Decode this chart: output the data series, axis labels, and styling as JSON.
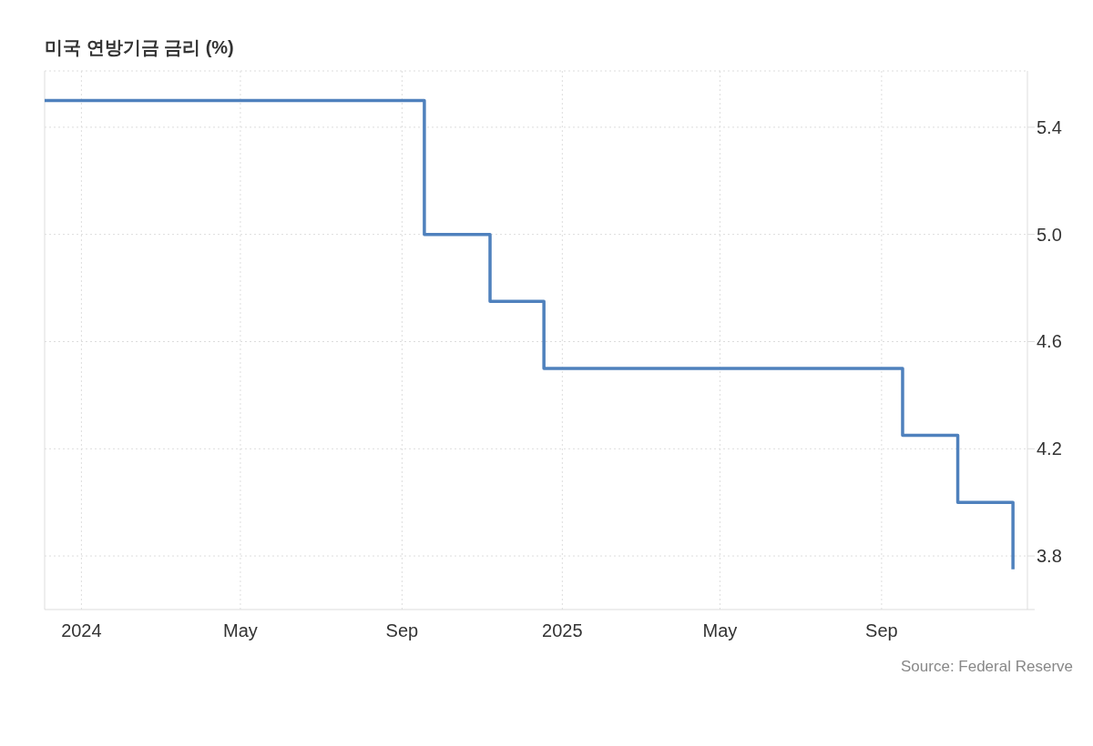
{
  "chart_data": {
    "type": "step",
    "title": "미국 연방기금 금리 (%)",
    "x": [
      "2023-12-04",
      "2024-09-18",
      "2024-11-07",
      "2024-12-18",
      "2025-09-17",
      "2025-10-29",
      "2025-12-10"
    ],
    "values": [
      5.5,
      5.0,
      4.75,
      4.5,
      4.25,
      4.0,
      3.75
    ],
    "color": "#4f81bd",
    "xlim": [
      "2023-12-04",
      "2025-12-21"
    ],
    "xticks": [
      {
        "value": "2024-01-01",
        "label": "2024"
      },
      {
        "value": "2024-05-01",
        "label": "May"
      },
      {
        "value": "2024-09-01",
        "label": "Sep"
      },
      {
        "value": "2025-01-01",
        "label": "2025"
      },
      {
        "value": "2025-05-01",
        "label": "May"
      },
      {
        "value": "2025-09-01",
        "label": "Sep"
      }
    ],
    "ylim": [
      3.6,
      5.61
    ],
    "yticks": [
      3.8,
      4.2,
      4.6,
      {
        "value": 5,
        "label": "5.0"
      },
      5.4
    ],
    "grid": true,
    "annotations": [
      "Source: Federal Reserve"
    ]
  }
}
